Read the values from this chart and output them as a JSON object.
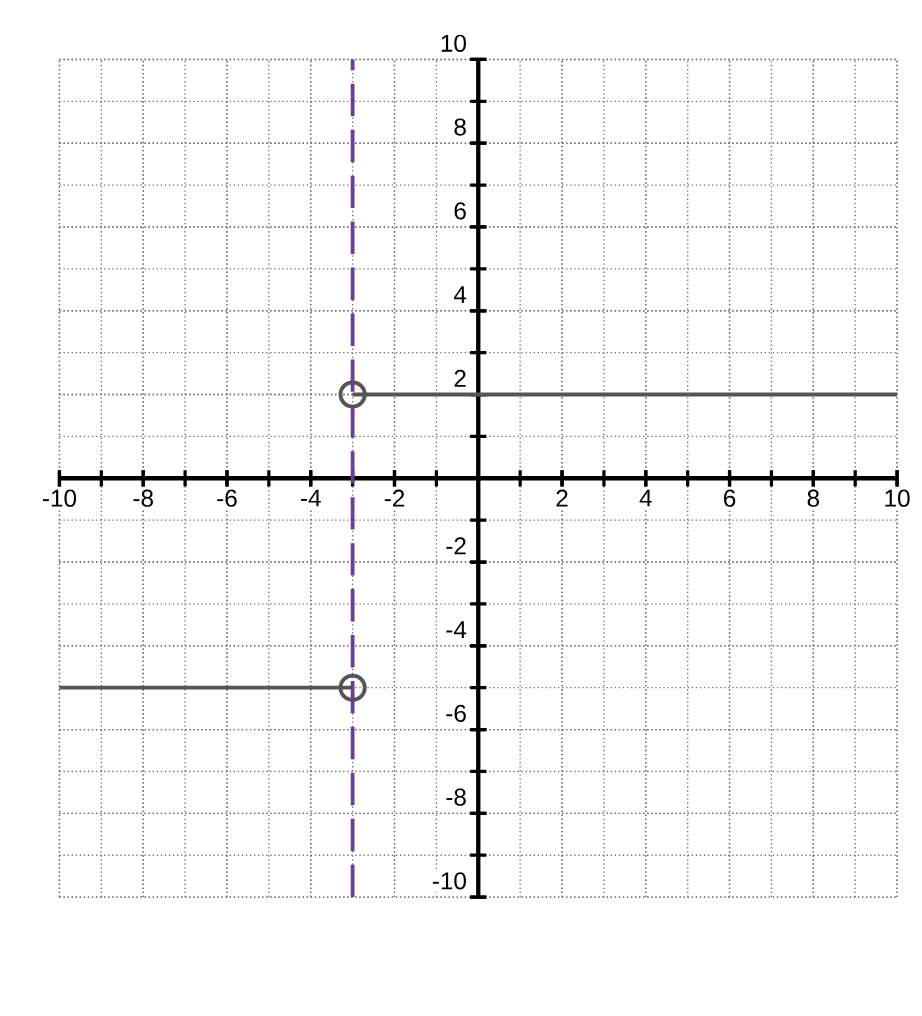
{
  "chart_data": {
    "type": "line",
    "series": [
      {
        "color": "#555555",
        "x": [
          -3,
          10
        ],
        "values": [
          2,
          2
        ]
      },
      {
        "color": "#555555",
        "x": [
          -10,
          -3
        ],
        "values": [
          -5,
          -5
        ]
      },
      {
        "type": "scatter",
        "marker": "circle",
        "color": "#555555",
        "x": [
          -3,
          -3
        ],
        "values": [
          2,
          -5
        ]
      }
    ],
    "xlim": [
      -10,
      10
    ],
    "ylim": [
      -10,
      10
    ],
    "xticks": [
      -10,
      -8,
      -6,
      -4,
      -2,
      2,
      4,
      6,
      8,
      10
    ],
    "yticks": [
      -10,
      -8,
      -6,
      -4,
      -2,
      2,
      4,
      6,
      8,
      10
    ],
    "grid": true,
    "ref_lines": [
      {
        "axis": "x",
        "value": -3,
        "color": "#6a3d9a",
        "line_style": "dashed"
      }
    ]
  }
}
